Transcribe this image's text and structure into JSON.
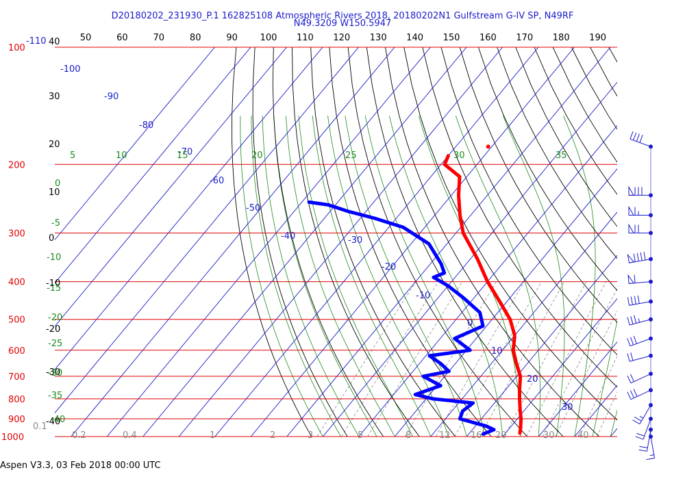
{
  "header": {
    "line1": "D20180202_231930_P.1 162825108 Atmospheric Rivers 2018, 20180202N1 Gulfstream G-IV SP, N49RF",
    "line2": "N49.3209 W150.5947"
  },
  "footer": {
    "text": "Aspen V3.3, 03 Feb 2018  00:00 UTC"
  },
  "colors": {
    "pressure": "#e00000",
    "isotherm": "#1a1acc",
    "dry_adiabat": "#000000",
    "moist_adiabat": "#1a8a1a",
    "mixing_ratio": "#888888",
    "temperature": "#ff0000",
    "dewpoint": "#0000ff",
    "wind": "#1a1acc"
  },
  "chart_data": {
    "type": "skew-t",
    "title": "D20180202_231930_P.1 162825108 Atmospheric Rivers 2018, 20180202N1 Gulfstream G-IV SP, N49RF",
    "subtitle": "N49.3209 W150.5947",
    "pressure_ticks": [
      "100",
      "200",
      "300",
      "400",
      "500",
      "600",
      "700",
      "800",
      "900",
      "1000"
    ],
    "top_temperature_ticks": [
      "50",
      "60",
      "70",
      "80",
      "90",
      "100",
      "110",
      "120",
      "130",
      "140",
      "150",
      "160",
      "170",
      "180",
      "190"
    ],
    "top_left_label": "-110",
    "left_temperature_labels": [
      "40",
      "30",
      "20",
      "10",
      "0",
      "-10",
      "-20",
      "-30",
      "-40"
    ],
    "isotherm_labels": [
      "-100",
      "-90",
      "-80",
      "-70",
      "-60",
      "-50",
      "-40",
      "-30",
      "-20",
      "-10",
      "0",
      "10",
      "20",
      "30"
    ],
    "moist_adiabat_labels": [
      "5",
      "10",
      "15",
      "20",
      "25",
      "30",
      "35"
    ],
    "moist_adiabat_left_labels": [
      "0",
      "-5",
      "-10",
      "-15",
      "-20",
      "-25",
      "-30",
      "-35",
      "-40"
    ],
    "mixing_ratio_labels": [
      "0.1",
      "0.2",
      "0.4",
      "1",
      "2",
      "3",
      "5",
      "8",
      "12",
      "16",
      "20",
      "30",
      "40"
    ],
    "temperature_profile": [
      {
        "p": 190,
        "t": -70
      },
      {
        "p": 200,
        "t": -69
      },
      {
        "p": 215,
        "t": -62
      },
      {
        "p": 240,
        "t": -58
      },
      {
        "p": 270,
        "t": -53
      },
      {
        "p": 300,
        "t": -48
      },
      {
        "p": 350,
        "t": -38
      },
      {
        "p": 400,
        "t": -30
      },
      {
        "p": 450,
        "t": -22
      },
      {
        "p": 500,
        "t": -15
      },
      {
        "p": 550,
        "t": -10
      },
      {
        "p": 600,
        "t": -7
      },
      {
        "p": 650,
        "t": -3
      },
      {
        "p": 700,
        "t": 1
      },
      {
        "p": 760,
        "t": 4
      },
      {
        "p": 800,
        "t": 6
      },
      {
        "p": 860,
        "t": 9
      },
      {
        "p": 900,
        "t": 11
      },
      {
        "p": 950,
        "t": 13
      },
      {
        "p": 980,
        "t": 14
      }
    ],
    "dewpoint_profile": [
      {
        "p": 250,
        "t": -98
      },
      {
        "p": 254,
        "t": -92
      },
      {
        "p": 264,
        "t": -85
      },
      {
        "p": 275,
        "t": -76
      },
      {
        "p": 290,
        "t": -66
      },
      {
        "p": 320,
        "t": -55
      },
      {
        "p": 360,
        "t": -47
      },
      {
        "p": 380,
        "t": -44
      },
      {
        "p": 390,
        "t": -46
      },
      {
        "p": 410,
        "t": -40
      },
      {
        "p": 440,
        "t": -33
      },
      {
        "p": 480,
        "t": -25
      },
      {
        "p": 520,
        "t": -21
      },
      {
        "p": 560,
        "t": -26
      },
      {
        "p": 600,
        "t": -19
      },
      {
        "p": 620,
        "t": -29
      },
      {
        "p": 650,
        "t": -24
      },
      {
        "p": 680,
        "t": -20
      },
      {
        "p": 700,
        "t": -26
      },
      {
        "p": 740,
        "t": -19
      },
      {
        "p": 780,
        "t": -24
      },
      {
        "p": 800,
        "t": -18
      },
      {
        "p": 820,
        "t": -6
      },
      {
        "p": 860,
        "t": -7
      },
      {
        "p": 900,
        "t": -6
      },
      {
        "p": 940,
        "t": 3
      },
      {
        "p": 960,
        "t": 6
      },
      {
        "p": 985,
        "t": 4
      }
    ],
    "isolated_temperature_point": {
      "p": 180,
      "t": -61
    },
    "wind_barbs": [
      {
        "p": 180,
        "dir": 290,
        "spd": 40
      },
      {
        "p": 240,
        "dir": 270,
        "spd": 80
      },
      {
        "p": 270,
        "dir": 270,
        "spd": 65
      },
      {
        "p": 300,
        "dir": 270,
        "spd": 70
      },
      {
        "p": 350,
        "dir": 260,
        "spd": 90
      },
      {
        "p": 400,
        "dir": 265,
        "spd": 60
      },
      {
        "p": 450,
        "dir": 260,
        "spd": 40
      },
      {
        "p": 500,
        "dir": 255,
        "spd": 35
      },
      {
        "p": 560,
        "dir": 250,
        "spd": 30
      },
      {
        "p": 620,
        "dir": 255,
        "spd": 20
      },
      {
        "p": 690,
        "dir": 245,
        "spd": 20
      },
      {
        "p": 760,
        "dir": 245,
        "spd": 30
      },
      {
        "p": 830,
        "dir": 210,
        "spd": 25
      },
      {
        "p": 900,
        "dir": 200,
        "spd": 20
      },
      {
        "p": 960,
        "dir": 190,
        "spd": 20
      },
      {
        "p": 1000,
        "dir": 170,
        "spd": 15
      }
    ]
  }
}
